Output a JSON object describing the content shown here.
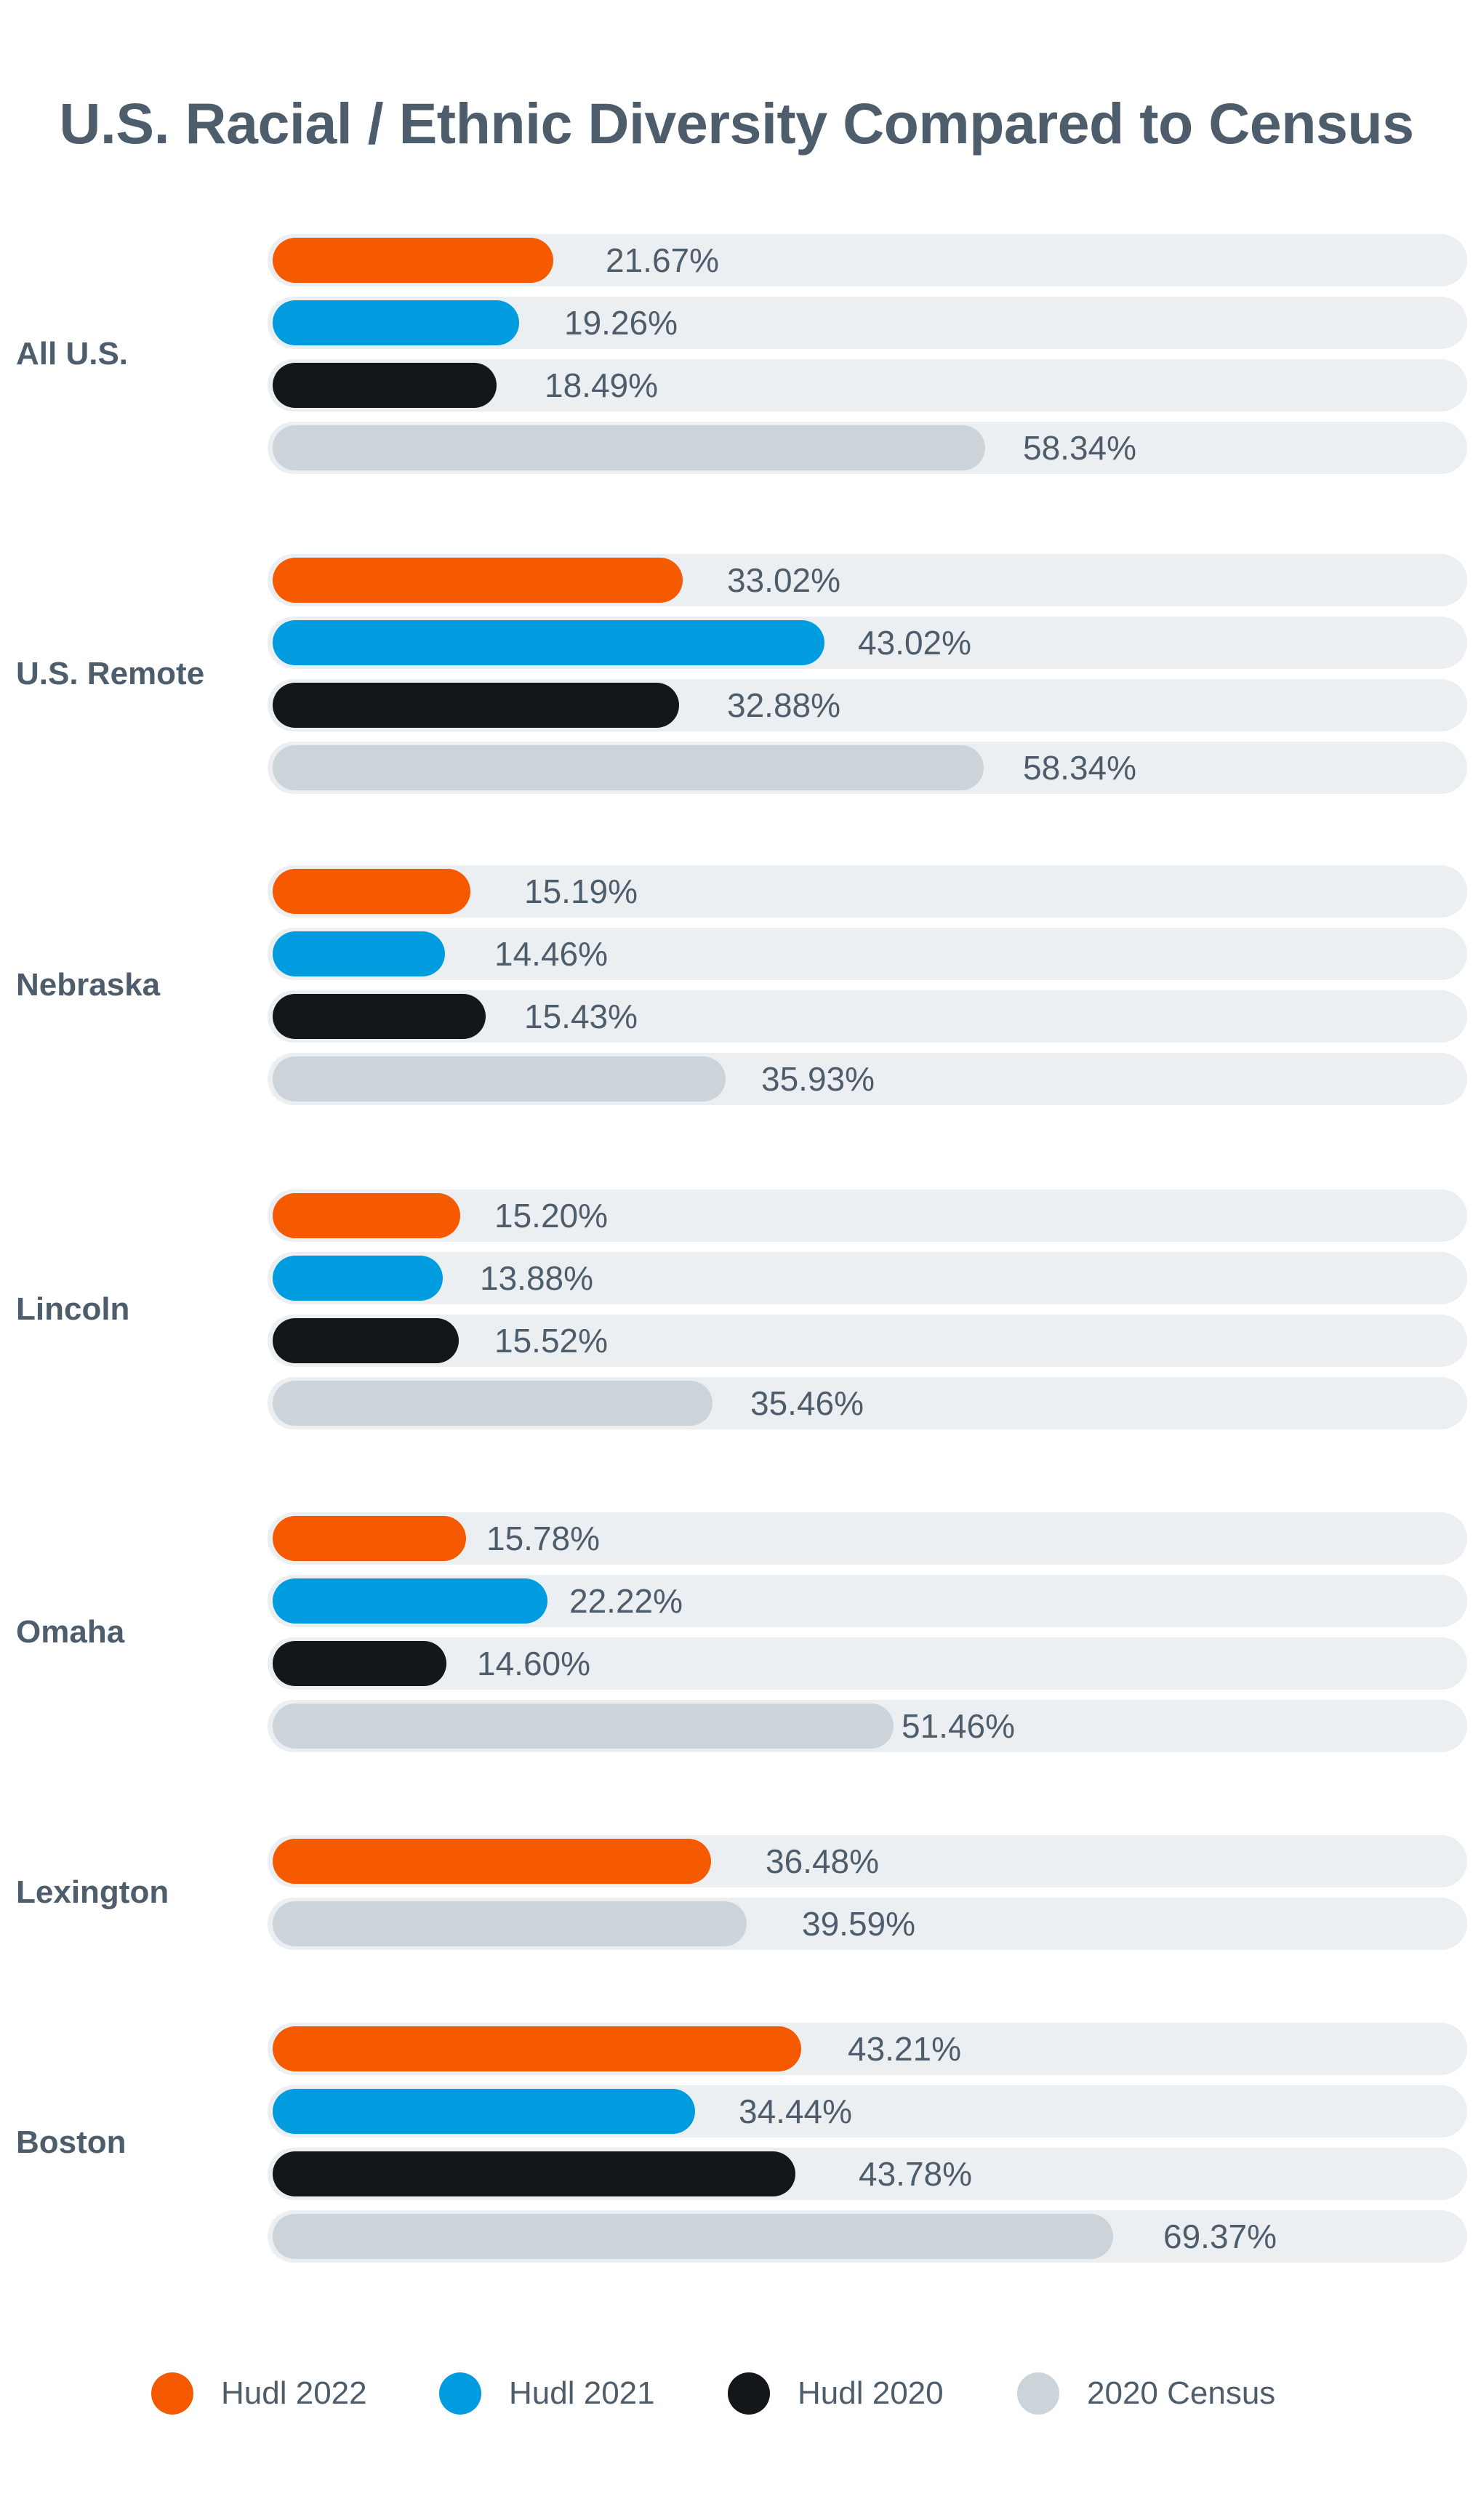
{
  "title": "U.S. Racial / Ethnic Diversity Compared to Census",
  "colors": {
    "hudl_2022": "#f55a00",
    "hudl_2021": "#009ce0",
    "hudl_2020": "#13171a",
    "census_2020": "#ccd4da",
    "track": "#ebeff2",
    "text": "#4e5d6c"
  },
  "legend": [
    {
      "label": "Hudl 2022",
      "series": "hudl_2022"
    },
    {
      "label": "Hudl 2021",
      "series": "hudl_2021"
    },
    {
      "label": "Hudl 2020",
      "series": "hudl_2020"
    },
    {
      "label": "2020 Census",
      "series": "census_2020"
    }
  ],
  "sections": [
    {
      "label": "All U.S.",
      "bars": [
        {
          "series": "hudl_2022",
          "value": "21.67%"
        },
        {
          "series": "hudl_2021",
          "value": "19.26%"
        },
        {
          "series": "hudl_2020",
          "value": "18.49%"
        },
        {
          "series": "census_2020",
          "value": "58.34%"
        }
      ]
    },
    {
      "label": "U.S. Remote",
      "bars": [
        {
          "series": "hudl_2022",
          "value": "33.02%"
        },
        {
          "series": "hudl_2021",
          "value": "43.02%"
        },
        {
          "series": "hudl_2020",
          "value": "32.88%"
        },
        {
          "series": "census_2020",
          "value": "58.34%"
        }
      ]
    },
    {
      "label": "Nebraska",
      "bars": [
        {
          "series": "hudl_2022",
          "value": "15.19%"
        },
        {
          "series": "hudl_2021",
          "value": "14.46%"
        },
        {
          "series": "hudl_2020",
          "value": "15.43%"
        },
        {
          "series": "census_2020",
          "value": "35.93%"
        }
      ]
    },
    {
      "label": "Lincoln",
      "bars": [
        {
          "series": "hudl_2022",
          "value": "15.20%"
        },
        {
          "series": "hudl_2021",
          "value": "13.88%"
        },
        {
          "series": "hudl_2020",
          "value": "15.52%"
        },
        {
          "series": "census_2020",
          "value": "35.46%"
        }
      ]
    },
    {
      "label": "Omaha",
      "bars": [
        {
          "series": "hudl_2022",
          "value": "15.78%"
        },
        {
          "series": "hudl_2021",
          "value": "22.22%"
        },
        {
          "series": "hudl_2020",
          "value": "14.60%"
        },
        {
          "series": "census_2020",
          "value": "51.46%"
        }
      ]
    },
    {
      "label": "Lexington",
      "bars": [
        {
          "series": "hudl_2022",
          "value": "36.48%"
        },
        {
          "series": "census_2020",
          "value": "39.59%"
        }
      ]
    },
    {
      "label": "Boston",
      "bars": [
        {
          "series": "hudl_2022",
          "value": "43.21%"
        },
        {
          "series": "hudl_2021",
          "value": "34.44%"
        },
        {
          "series": "hudl_2020",
          "value": "43.78%"
        },
        {
          "series": "census_2020",
          "value": "69.37%"
        }
      ]
    }
  ],
  "chart_data": {
    "type": "bar",
    "orientation": "horizontal",
    "title": "U.S. Racial / Ethnic Diversity Compared to Census",
    "xlabel": "",
    "ylabel": "",
    "unit": "%",
    "grid": false,
    "legend_position": "bottom",
    "categories": [
      "All U.S.",
      "U.S. Remote",
      "Nebraska",
      "Lincoln",
      "Omaha",
      "Lexington",
      "Boston"
    ],
    "series": [
      {
        "name": "Hudl 2022",
        "color": "#f55a00",
        "values": [
          21.67,
          33.02,
          15.19,
          15.2,
          15.78,
          36.48,
          43.21
        ]
      },
      {
        "name": "Hudl 2021",
        "color": "#009ce0",
        "values": [
          19.26,
          43.02,
          14.46,
          13.88,
          22.22,
          null,
          34.44
        ]
      },
      {
        "name": "Hudl 2020",
        "color": "#13171a",
        "values": [
          18.49,
          32.88,
          15.43,
          15.52,
          14.6,
          null,
          43.78
        ]
      },
      {
        "name": "2020 Census",
        "color": "#ccd4da",
        "values": [
          58.34,
          58.34,
          35.93,
          35.46,
          51.46,
          39.59,
          69.37
        ]
      }
    ]
  }
}
